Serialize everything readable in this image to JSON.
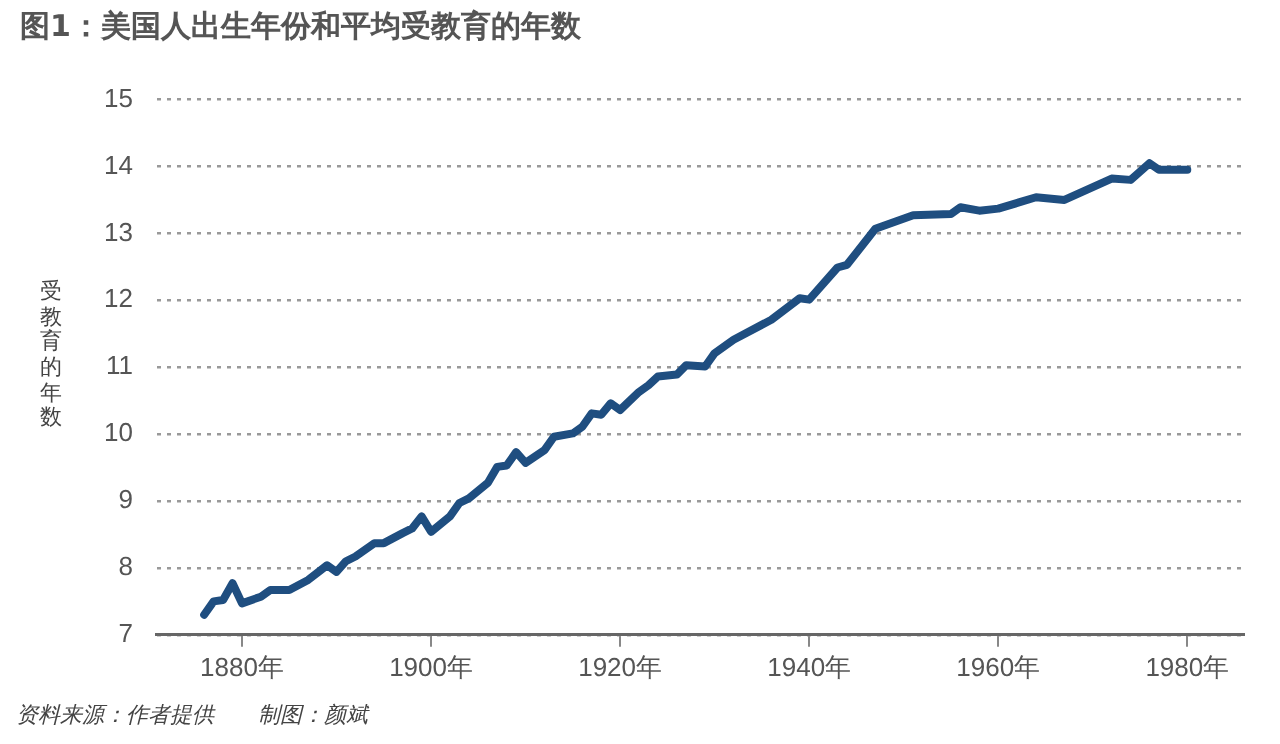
{
  "chart_data": {
    "type": "line",
    "title": "图1：美国人出生年份和平均受教育的年数",
    "ylabel": "受教育的年数",
    "annotations": [
      "资料来源：作者提供　　制图：颜斌"
    ],
    "x": [
      1876,
      1877,
      1878,
      1879,
      1880,
      1882,
      1883,
      1885,
      1887,
      1889,
      1890,
      1891,
      1892,
      1894,
      1895,
      1897,
      1898,
      1899,
      1900,
      1902,
      1903,
      1904,
      1906,
      1907,
      1908,
      1909,
      1910,
      1912,
      1913,
      1915,
      1916,
      1917,
      1918,
      1919,
      1920,
      1922,
      1923,
      1924,
      1926,
      1927,
      1929,
      1930,
      1932,
      1936,
      1939,
      1940,
      1943,
      1944,
      1947,
      1951,
      1955,
      1956,
      1958,
      1960,
      1964,
      1967,
      1972,
      1974,
      1976,
      1977,
      1980
    ],
    "series": [
      {
        "color": "#1f4e80",
        "values": [
          7.3,
          7.5,
          7.52,
          7.77,
          7.47,
          7.57,
          7.67,
          7.67,
          7.82,
          8.04,
          7.94,
          8.1,
          8.17,
          8.37,
          8.37,
          8.52,
          8.59,
          8.77,
          8.54,
          8.77,
          8.97,
          9.04,
          9.27,
          9.51,
          9.53,
          9.73,
          9.57,
          9.76,
          9.96,
          10.01,
          10.11,
          10.31,
          10.29,
          10.46,
          10.36,
          10.63,
          10.73,
          10.86,
          10.89,
          11.03,
          11.01,
          11.21,
          11.41,
          11.71,
          12.03,
          12.01,
          12.49,
          12.53,
          13.07,
          13.27,
          13.29,
          13.39,
          13.34,
          13.37,
          13.54,
          13.5,
          13.82,
          13.8,
          14.05,
          13.95,
          13.95
        ]
      }
    ],
    "xlim": [
      1871,
      1986
    ],
    "xticks": [
      {
        "value": 1880,
        "label": "1880年"
      },
      {
        "value": 1900,
        "label": "1900年"
      },
      {
        "value": 1920,
        "label": "1920年"
      },
      {
        "value": 1940,
        "label": "1940年"
      },
      {
        "value": 1960,
        "label": "1960年"
      },
      {
        "value": 1980,
        "label": "1980年"
      }
    ],
    "ylim": [
      7,
      15
    ],
    "yticks": [
      7,
      8,
      9,
      10,
      11,
      12,
      13,
      14,
      15
    ],
    "grid": "y",
    "legend": false,
    "marker": "none",
    "line_style": "solid"
  }
}
